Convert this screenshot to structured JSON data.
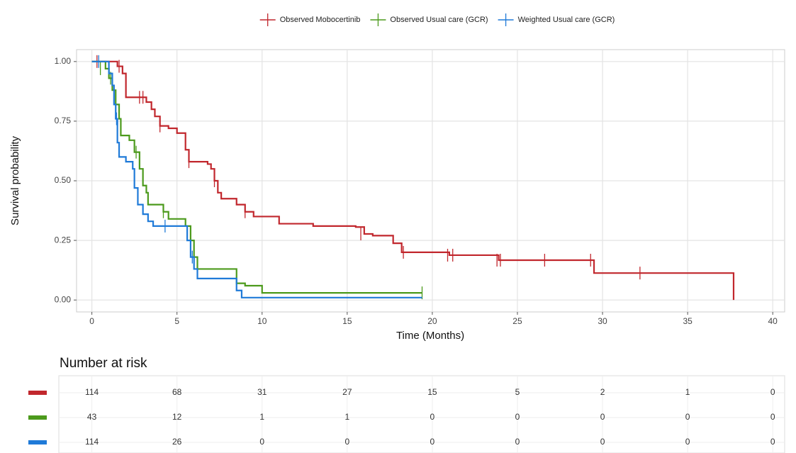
{
  "chart_data": {
    "type": "step",
    "xlabel": "Time (Months)",
    "ylabel": "Survival probability",
    "xlim": [
      -0.9,
      40.7
    ],
    "ylim": [
      -0.05,
      1.05
    ],
    "xticks": [
      0,
      5,
      10,
      15,
      20,
      25,
      30,
      35,
      40
    ],
    "yticks": [
      {
        "value": 0,
        "label": "0.00"
      },
      {
        "value": 0.25,
        "label": "0.25"
      },
      {
        "value": 0.5,
        "label": "0.50"
      },
      {
        "value": 0.75,
        "label": "0.75"
      },
      {
        "value": 1,
        "label": "1.00"
      }
    ],
    "grid": true,
    "legend": "top",
    "series": [
      {
        "name": "Observed Mobocertinib",
        "color": "#c1272d",
        "x": [
          0,
          1.5,
          1.8,
          2.0,
          3.2,
          3.5,
          3.7,
          4.0,
          4.5,
          5.0,
          5.5,
          5.7,
          6.8,
          7.0,
          7.2,
          7.4,
          7.6,
          8.5,
          9.0,
          9.5,
          11.0,
          13.0,
          15.5,
          16.0,
          16.5,
          17.7,
          18.2,
          21.0,
          23.9,
          29.5,
          37.7
        ],
        "values": [
          1.0,
          0.98,
          0.95,
          0.85,
          0.83,
          0.8,
          0.77,
          0.73,
          0.72,
          0.7,
          0.63,
          0.58,
          0.57,
          0.55,
          0.5,
          0.45,
          0.425,
          0.4,
          0.37,
          0.35,
          0.32,
          0.31,
          0.306,
          0.277,
          0.27,
          0.238,
          0.2,
          0.188,
          0.167,
          0.113,
          0.0
        ],
        "censor_x": [
          0.3,
          1.6,
          2.8,
          3.0,
          4.0,
          5.7,
          7.2,
          9.0,
          15.8,
          18.3,
          20.9,
          21.2,
          23.8,
          24.0,
          26.6,
          29.3,
          32.2
        ],
        "censor_values": [
          1.0,
          0.98,
          0.85,
          0.85,
          0.73,
          0.58,
          0.5,
          0.37,
          0.277,
          0.2,
          0.188,
          0.188,
          0.167,
          0.167,
          0.167,
          0.167,
          0.113
        ]
      },
      {
        "name": "Observed Usual care (GCR)",
        "color": "#4c9a1c",
        "x": [
          0,
          0.8,
          1.0,
          1.2,
          1.4,
          1.6,
          1.7,
          2.2,
          2.5,
          2.8,
          3.0,
          3.2,
          3.3,
          4.2,
          4.5,
          5.5,
          5.8,
          6.0,
          6.2,
          8.5,
          9.0,
          10.0,
          19.4
        ],
        "values": [
          1.0,
          0.97,
          0.93,
          0.88,
          0.82,
          0.76,
          0.69,
          0.67,
          0.62,
          0.55,
          0.48,
          0.45,
          0.4,
          0.37,
          0.34,
          0.31,
          0.25,
          0.18,
          0.13,
          0.07,
          0.06,
          0.03,
          0.03
        ],
        "censor_x": [
          0.5,
          1.1,
          2.6,
          4.2,
          5.8,
          19.4
        ],
        "censor_values": [
          0.97,
          0.93,
          0.62,
          0.37,
          0.25,
          0.03
        ]
      },
      {
        "name": "Weighted Usual care (GCR)",
        "color": "#1f7ad8",
        "x": [
          0,
          1.0,
          1.2,
          1.3,
          1.4,
          1.5,
          1.6,
          2.0,
          2.4,
          2.5,
          2.7,
          3.0,
          3.3,
          3.6,
          5.6,
          5.8,
          6.0,
          6.2,
          8.5,
          8.8,
          19.4
        ],
        "values": [
          1.0,
          0.95,
          0.9,
          0.82,
          0.76,
          0.66,
          0.6,
          0.58,
          0.55,
          0.47,
          0.4,
          0.36,
          0.33,
          0.31,
          0.25,
          0.18,
          0.13,
          0.09,
          0.04,
          0.01,
          0.01
        ],
        "censor_x": [
          0.4,
          1.45,
          4.3,
          5.9
        ],
        "censor_values": [
          1.0,
          0.76,
          0.31,
          0.18
        ]
      }
    ],
    "risk_table": {
      "title": "Number at risk",
      "rows": [
        [
          "114",
          "68",
          "31",
          "27",
          "15",
          "5",
          "2",
          "1",
          "0"
        ],
        [
          "43",
          "12",
          "1",
          "1",
          "0",
          "0",
          "0",
          "0",
          "0"
        ],
        [
          "114",
          "26",
          "0",
          "0",
          "0",
          "0",
          "0",
          "0",
          "0"
        ]
      ]
    }
  }
}
